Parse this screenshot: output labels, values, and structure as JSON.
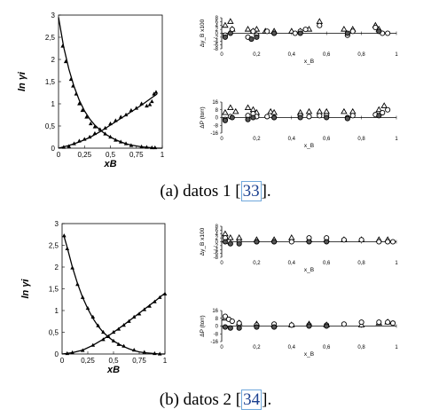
{
  "figures": [
    {
      "caption_prefix": "(a) datos 1 [",
      "caption_ref": "33",
      "caption_suffix": "].",
      "left_chart": {
        "ylabel": "ln γi",
        "xlabel": "xB",
        "xticks": [
          "0",
          "0,25",
          "0,5",
          "0,75",
          "1"
        ],
        "yticks": [
          "0",
          "0,5",
          "1",
          "1,5",
          "2",
          "2,5",
          "3"
        ]
      },
      "top_right_chart": {
        "ylabel": "Δy_B x100",
        "xlabel": "x_B",
        "xticks": [
          "0",
          "0,2",
          "0,4",
          "0,6",
          "0,8",
          "1"
        ],
        "yticks": [
          "8",
          "6",
          "4",
          "2",
          "0",
          "-2",
          "-4",
          "-6",
          "-8"
        ]
      },
      "bottom_right_chart": {
        "ylabel": "ΔP (torr)",
        "xlabel": "x_B",
        "xticks": [
          "0",
          "0,2",
          "0,4",
          "0,6",
          "0,8",
          "1"
        ],
        "yticks": [
          "16",
          "8",
          "0",
          "-8",
          "-16"
        ]
      }
    },
    {
      "caption_prefix": "(b) datos 2 [",
      "caption_ref": "34",
      "caption_suffix": "].",
      "left_chart": {
        "ylabel": "ln γi",
        "xlabel": "xB",
        "xticks": [
          "0",
          "0,25",
          "0,5",
          "0,75",
          "1"
        ],
        "yticks": [
          "0",
          "0,5",
          "1",
          "1,5",
          "2",
          "2,5",
          "3"
        ]
      },
      "top_right_chart": {
        "ylabel": "Δy_B x100",
        "xlabel": "x_B",
        "xticks": [
          "0",
          "0,2",
          "0,4",
          "0,6",
          "0,8",
          "1"
        ],
        "yticks": [
          "8",
          "6",
          "4",
          "2",
          "0",
          "-2",
          "-4",
          "-6",
          "-8"
        ]
      },
      "bottom_right_chart": {
        "ylabel": "ΔP (torr)",
        "xlabel": "x_B",
        "xticks": [
          "0",
          "0,2",
          "0,4",
          "0,6",
          "0,8",
          "1"
        ],
        "yticks": [
          "16",
          "8",
          "0",
          "-8",
          "-16"
        ]
      }
    }
  ],
  "chart_data": [
    {
      "type": "line+scatter",
      "ylabel": "ln γi",
      "xlabel": "xB",
      "xlim": [
        0,
        1
      ],
      "ylim": [
        0,
        3
      ],
      "series": [
        {
          "curve_x": [
            0,
            0.05,
            0.1,
            0.15,
            0.2,
            0.25,
            0.3,
            0.35,
            0.4,
            0.45,
            0.5,
            0.55,
            0.6,
            0.65,
            0.7,
            0.75,
            0.8,
            0.85,
            0.9,
            0.95,
            1.0
          ],
          "curve_y": [
            2.95,
            2.28,
            1.78,
            1.39,
            1.08,
            0.84,
            0.66,
            0.52,
            0.41,
            0.32,
            0.25,
            0.19,
            0.14,
            0.1,
            0.07,
            0.05,
            0.03,
            0.02,
            0.01,
            0.0,
            0.0
          ],
          "points_x": [
            0.04,
            0.07,
            0.12,
            0.14,
            0.17,
            0.2,
            0.23,
            0.27,
            0.31,
            0.35,
            0.4,
            0.45,
            0.5,
            0.55,
            0.6,
            0.65,
            0.7,
            0.8,
            0.85,
            0.9,
            0.93
          ],
          "points_y": [
            2.3,
            1.95,
            1.55,
            1.4,
            1.22,
            1.0,
            0.85,
            0.7,
            0.55,
            0.48,
            0.42,
            0.32,
            0.25,
            0.18,
            0.14,
            0.1,
            0.06,
            0.03,
            0.02,
            0.01,
            0.01
          ]
        },
        {
          "curve_x": [
            0,
            0.1,
            0.2,
            0.3,
            0.4,
            0.5,
            0.6,
            0.7,
            0.8,
            0.9,
            0.95
          ],
          "curve_y": [
            0,
            0.06,
            0.14,
            0.24,
            0.37,
            0.52,
            0.67,
            0.82,
            0.97,
            1.14,
            1.22
          ],
          "points_x": [
            0.05,
            0.1,
            0.15,
            0.2,
            0.25,
            0.3,
            0.35,
            0.45,
            0.5,
            0.55,
            0.6,
            0.65,
            0.7,
            0.75,
            0.8,
            0.85,
            0.88,
            0.9,
            0.92,
            0.94
          ],
          "points_y": [
            0.02,
            0.04,
            0.1,
            0.16,
            0.2,
            0.25,
            0.33,
            0.45,
            0.55,
            0.62,
            0.7,
            0.75,
            0.85,
            0.9,
            1.0,
            0.95,
            0.98,
            1.05,
            1.22,
            1.26
          ]
        }
      ]
    },
    {
      "type": "scatter",
      "ylabel": "Δy_B x100",
      "xlabel": "x_B",
      "xlim": [
        0,
        1
      ],
      "ylim": [
        -8,
        8
      ],
      "triangles": {
        "x": [
          0.02,
          0.05,
          0.06,
          0.15,
          0.18,
          0.2,
          0.25,
          0.3,
          0.4,
          0.45,
          0.5,
          0.56,
          0.7,
          0.75,
          0.88,
          0.9
        ],
        "y": [
          4,
          6,
          2,
          2,
          1,
          2,
          1,
          1,
          1,
          1,
          2,
          6,
          2,
          2,
          4,
          2
        ]
      },
      "circles_open": {
        "x": [
          0.02,
          0.06,
          0.15,
          0.18,
          0.2,
          0.26,
          0.3,
          0.42,
          0.45,
          0.48,
          0.56,
          0.72,
          0.75,
          0.88,
          0.92,
          0.95
        ],
        "y": [
          -1,
          2,
          -2,
          1,
          -1,
          1,
          0,
          0,
          1,
          2,
          4,
          -1,
          1,
          3,
          0,
          0
        ]
      },
      "circles_filled": {
        "x": [
          0.02,
          0.05,
          0.17,
          0.2,
          0.3,
          0.45,
          0.72,
          0.9
        ],
        "y": [
          -2,
          0,
          -3,
          -2,
          0,
          0,
          0,
          1
        ]
      }
    },
    {
      "type": "scatter",
      "ylabel": "ΔP (torr)",
      "xlabel": "x_B",
      "xlim": [
        0,
        1
      ],
      "ylim": [
        -16,
        16
      ],
      "triangles": {
        "x": [
          0.02,
          0.05,
          0.08,
          0.15,
          0.18,
          0.2,
          0.28,
          0.3,
          0.45,
          0.5,
          0.56,
          0.6,
          0.7,
          0.75,
          0.9,
          0.93
        ],
        "y": [
          5,
          10,
          6,
          10,
          8,
          5,
          6,
          5,
          5,
          6,
          6,
          6,
          6,
          6,
          8,
          12
        ]
      },
      "circles_open": {
        "x": [
          0.02,
          0.05,
          0.15,
          0.18,
          0.2,
          0.26,
          0.3,
          0.45,
          0.5,
          0.56,
          0.6,
          0.72,
          0.75,
          0.88,
          0.92,
          0.95
        ],
        "y": [
          -2,
          1,
          2,
          4,
          1,
          1,
          0,
          2,
          1,
          2,
          2,
          0,
          2,
          3,
          5,
          8
        ]
      },
      "circles_filled": {
        "x": [
          0.02,
          0.06,
          0.15,
          0.18,
          0.3,
          0.45,
          0.6,
          0.72,
          0.9
        ],
        "y": [
          -3,
          0,
          -2,
          0,
          0,
          0,
          0,
          -1,
          2
        ]
      }
    },
    {
      "type": "line+scatter",
      "ylabel": "ln γi",
      "xlabel": "xB",
      "xlim": [
        0,
        1
      ],
      "ylim": [
        0,
        3
      ],
      "series": [
        {
          "curve_x": [
            0.02,
            0.05,
            0.1,
            0.15,
            0.2,
            0.25,
            0.3,
            0.35,
            0.4,
            0.45,
            0.5,
            0.55,
            0.6,
            0.65,
            0.7,
            0.75,
            0.8,
            0.85,
            0.9,
            0.95,
            1.0
          ],
          "curve_y": [
            2.7,
            2.45,
            2.0,
            1.62,
            1.3,
            1.04,
            0.82,
            0.64,
            0.5,
            0.39,
            0.3,
            0.23,
            0.17,
            0.12,
            0.08,
            0.05,
            0.03,
            0.02,
            0.01,
            0.0,
            0.0
          ],
          "points_x": [
            0.02,
            0.05,
            0.1,
            0.15,
            0.2,
            0.25,
            0.3,
            0.35,
            0.4,
            0.45,
            0.5,
            0.55,
            0.6,
            0.7,
            0.8,
            0.9,
            0.95
          ],
          "points_y": [
            2.72,
            2.42,
            1.98,
            1.6,
            1.3,
            1.05,
            0.85,
            0.65,
            0.5,
            0.4,
            0.3,
            0.22,
            0.18,
            0.09,
            0.04,
            0.01,
            0.0
          ]
        },
        {
          "curve_x": [
            0,
            0.1,
            0.2,
            0.3,
            0.4,
            0.5,
            0.6,
            0.7,
            0.8,
            0.9,
            1.0
          ],
          "curve_y": [
            0,
            0.03,
            0.09,
            0.2,
            0.34,
            0.5,
            0.67,
            0.85,
            1.03,
            1.21,
            1.4
          ],
          "points_x": [
            0.05,
            0.1,
            0.2,
            0.3,
            0.4,
            0.45,
            0.5,
            0.55,
            0.6,
            0.65,
            0.7,
            0.75,
            0.8,
            0.85,
            0.9,
            0.95,
            1.0
          ],
          "points_y": [
            0.01,
            0.03,
            0.08,
            0.2,
            0.33,
            0.4,
            0.5,
            0.57,
            0.66,
            0.75,
            0.85,
            0.92,
            1.02,
            1.1,
            1.2,
            1.3,
            1.38
          ]
        }
      ]
    },
    {
      "type": "scatter",
      "ylabel": "Δy_B x100",
      "xlabel": "x_B",
      "xlim": [
        0,
        1
      ],
      "ylim": [
        -8,
        8
      ],
      "triangles": {
        "x": [
          0.02,
          0.05,
          0.1,
          0.2,
          0.3,
          0.4,
          0.5,
          0.6,
          0.7,
          0.8,
          0.9,
          0.95
        ],
        "y": [
          4,
          2,
          2,
          1,
          1,
          2,
          1,
          1,
          1,
          1,
          1,
          1
        ]
      },
      "circles_open": {
        "x": [
          0.02,
          0.04,
          0.1,
          0.2,
          0.3,
          0.4,
          0.5,
          0.6,
          0.7,
          0.8,
          0.9,
          0.95,
          0.98
        ],
        "y": [
          2,
          0,
          0,
          0,
          0,
          0,
          2,
          2,
          1,
          1,
          0,
          0,
          0
        ]
      },
      "circles_filled": {
        "x": [
          0.02,
          0.05,
          0.1,
          0.2,
          0.3,
          0.5,
          0.6
        ],
        "y": [
          0,
          -1,
          -1,
          0,
          0,
          0,
          0
        ]
      }
    },
    {
      "type": "scatter",
      "ylabel": "ΔP (torr)",
      "xlabel": "x_B",
      "xlim": [
        0,
        1
      ],
      "ylim": [
        -16,
        16
      ],
      "triangles": {
        "x": [
          0.02,
          0.1,
          0.2,
          0.3,
          0.4,
          0.5,
          0.6,
          0.8,
          0.9,
          0.95
        ],
        "y": [
          8,
          3,
          2,
          1,
          1,
          2,
          1,
          1,
          3,
          4
        ]
      },
      "circles_open": {
        "x": [
          0.02,
          0.04,
          0.06,
          0.1,
          0.2,
          0.3,
          0.4,
          0.5,
          0.6,
          0.7,
          0.8,
          0.9,
          0.95,
          0.98
        ],
        "y": [
          10,
          7,
          5,
          3,
          1,
          2,
          1,
          1,
          1,
          2,
          4,
          4,
          4,
          3
        ]
      },
      "circles_filled": {
        "x": [
          0.02,
          0.05,
          0.1,
          0.2,
          0.3,
          0.5,
          0.6
        ],
        "y": [
          -1,
          -2,
          -2,
          -1,
          -1,
          0,
          0
        ]
      }
    }
  ]
}
